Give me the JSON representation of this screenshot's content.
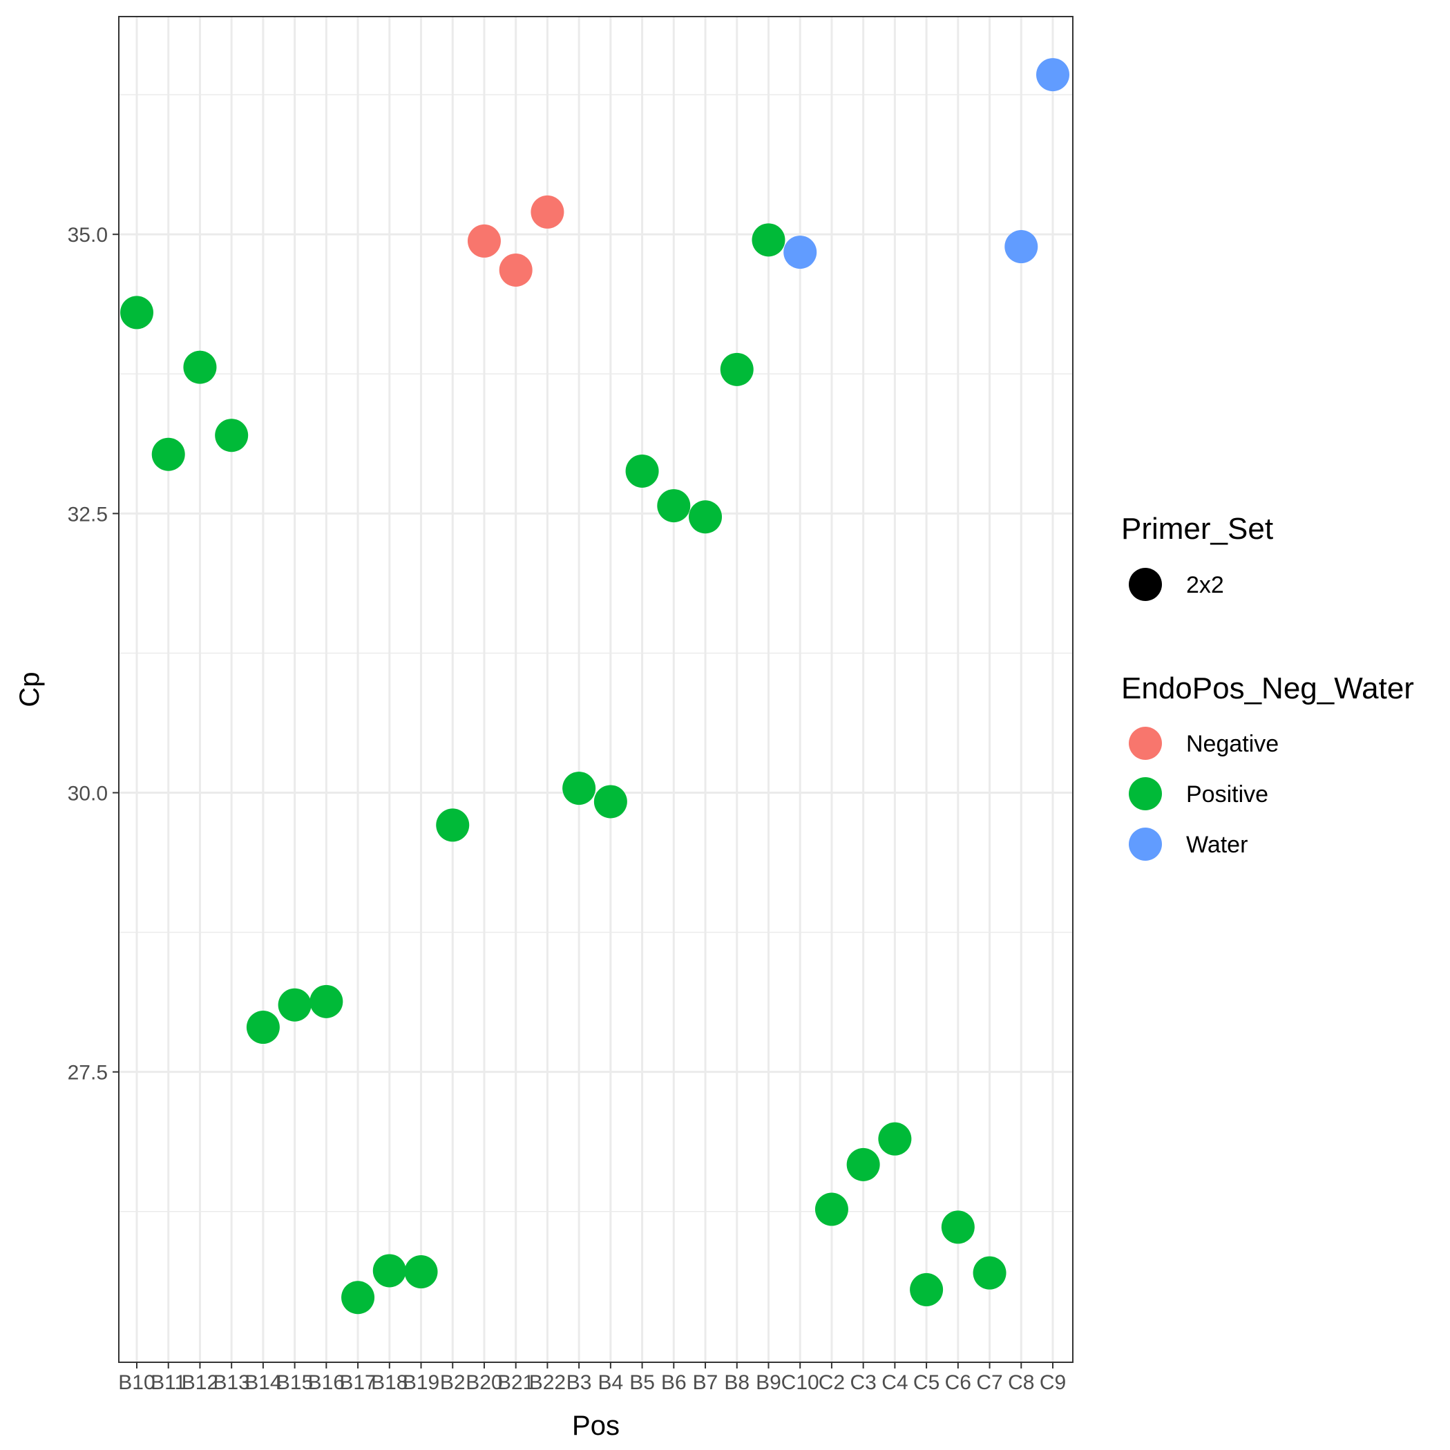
{
  "chart_data": {
    "type": "scatter",
    "xlabel": "Pos",
    "ylabel": "Cp",
    "ylim": [
      24.9,
      36.95
    ],
    "y_ticks": [
      "27.5",
      "30.0",
      "32.5",
      "35.0"
    ],
    "y_tick_values": [
      27.5,
      30.0,
      32.5,
      35.0
    ],
    "grid": true,
    "x_categories": [
      "B10",
      "B11",
      "B12",
      "B13",
      "B14",
      "B15",
      "B16",
      "B17",
      "B18",
      "B19",
      "B2",
      "B20",
      "B21",
      "B22",
      "B3",
      "B4",
      "B5",
      "B6",
      "B7",
      "B8",
      "B9",
      "C10",
      "C2",
      "C3",
      "C4",
      "C5",
      "C6",
      "C7",
      "C8",
      "C9"
    ],
    "legend": {
      "placement": "right",
      "shape_title": "Primer_Set",
      "shape_items": [
        {
          "label": "2x2",
          "color": "#000000"
        }
      ],
      "color_title": "EndoPos_Neg_Water",
      "color_items": [
        {
          "label": "Negative",
          "color": "#F8766D"
        },
        {
          "label": "Positive",
          "color": "#00BA38"
        },
        {
          "label": "Water",
          "color": "#619CFF"
        }
      ]
    },
    "points": [
      {
        "x": "B10",
        "y": 34.3,
        "group": "Positive"
      },
      {
        "x": "B11",
        "y": 33.03,
        "group": "Positive"
      },
      {
        "x": "B12",
        "y": 33.81,
        "group": "Positive"
      },
      {
        "x": "B13",
        "y": 33.2,
        "group": "Positive"
      },
      {
        "x": "B14",
        "y": 27.9,
        "group": "Positive"
      },
      {
        "x": "B15",
        "y": 28.1,
        "group": "Positive"
      },
      {
        "x": "B16",
        "y": 28.13,
        "group": "Positive"
      },
      {
        "x": "B17",
        "y": 25.48,
        "group": "Positive"
      },
      {
        "x": "B18",
        "y": 25.72,
        "group": "Positive"
      },
      {
        "x": "B19",
        "y": 25.71,
        "group": "Positive"
      },
      {
        "x": "B2",
        "y": 29.71,
        "group": "Positive"
      },
      {
        "x": "B20",
        "y": 34.94,
        "group": "Negative"
      },
      {
        "x": "B21",
        "y": 34.68,
        "group": "Negative"
      },
      {
        "x": "B22",
        "y": 35.2,
        "group": "Negative"
      },
      {
        "x": "B3",
        "y": 30.04,
        "group": "Positive"
      },
      {
        "x": "B4",
        "y": 29.92,
        "group": "Positive"
      },
      {
        "x": "B5",
        "y": 32.88,
        "group": "Positive"
      },
      {
        "x": "B6",
        "y": 32.57,
        "group": "Positive"
      },
      {
        "x": "B7",
        "y": 32.47,
        "group": "Positive"
      },
      {
        "x": "B8",
        "y": 33.79,
        "group": "Positive"
      },
      {
        "x": "B9",
        "y": 34.95,
        "group": "Positive"
      },
      {
        "x": "C10",
        "y": 34.84,
        "group": "Water"
      },
      {
        "x": "C2",
        "y": 26.27,
        "group": "Positive"
      },
      {
        "x": "C3",
        "y": 26.67,
        "group": "Positive"
      },
      {
        "x": "C4",
        "y": 26.9,
        "group": "Positive"
      },
      {
        "x": "C5",
        "y": 25.55,
        "group": "Positive"
      },
      {
        "x": "C6",
        "y": 26.11,
        "group": "Positive"
      },
      {
        "x": "C7",
        "y": 25.7,
        "group": "Positive"
      },
      {
        "x": "C8",
        "y": 34.89,
        "group": "Water"
      },
      {
        "x": "C9",
        "y": 36.43,
        "group": "Water"
      }
    ]
  }
}
